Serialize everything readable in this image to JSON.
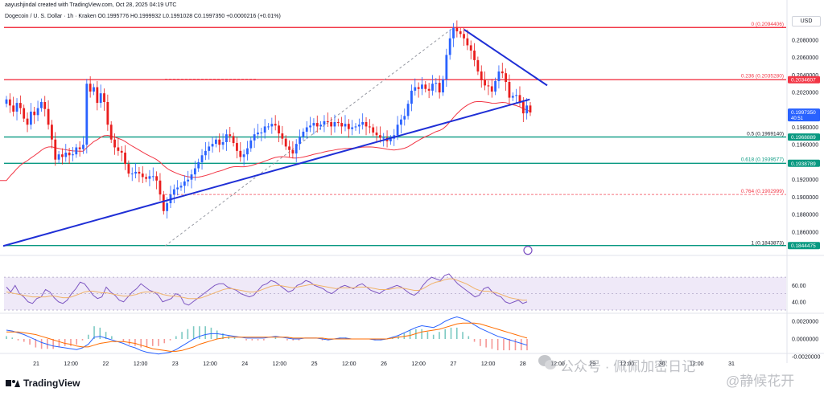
{
  "header": {
    "line1": "aayushjindal created with TradingView.com, Oct 28, 2025 04:19 UTC",
    "line2": "Dogecoin / U. S. Dollar · 1h · Kraken  O0.1995776  H0.1999932  L0.1991028  C0.1997350  +0.0000216 (+0.01%)"
  },
  "currency_label": "USD",
  "brand": "TradingView",
  "watermark": {
    "line1": "公众号 · 佩佩加密日记",
    "line2": "@静候花开"
  },
  "colors": {
    "up": "#2962ff",
    "down": "#e91e1e",
    "fib_red": "#f23645",
    "fib_green": "#089981",
    "ma": "#f23645",
    "trend": "#1f2fd6",
    "rsi": "#7e57c2",
    "rsi_ma": "#f0b36a",
    "macd": "#2962ff",
    "signal": "#ff6d00"
  },
  "chart_data": [
    {
      "type": "candlestick",
      "title": "Dogecoin / U. S. Dollar · 1h · Kraken",
      "y_range": [
        0.1835,
        0.2102
      ],
      "y_ticks": [
        "0.2080000",
        "0.2060000",
        "0.2040000",
        "0.2020000",
        "0.1980000",
        "0.1960000",
        "0.1920000",
        "0.1900000",
        "0.1880000",
        "0.1860000"
      ],
      "x_ticks": [
        "21",
        "12:00",
        "22",
        "12:00",
        "23",
        "12:00",
        "24",
        "12:00",
        "25",
        "12:00",
        "26",
        "12:00",
        "27",
        "12:00",
        "28",
        "12:00",
        "29",
        "12:00",
        "30",
        "12:00",
        "31"
      ],
      "price_labels": [
        {
          "value": "0.2034607",
          "kind": "red"
        },
        {
          "value": "0.1997350",
          "kind": "current",
          "sub": "40:51"
        },
        {
          "value": "0.1968889",
          "kind": "green"
        },
        {
          "value": "0.1938789",
          "kind": "green"
        },
        {
          "value": "0.1844475",
          "kind": "green"
        }
      ],
      "fib_levels": [
        {
          "label": "0 (0.2094406)",
          "value": 0.2094406,
          "color": "red"
        },
        {
          "label": "0.236 (0.2035280)",
          "value": 0.203528,
          "color": "red"
        },
        {
          "label": "0.5 (0.1969140)",
          "value": 0.196914,
          "color": "none"
        },
        {
          "label": "0.618 (0.1939577)",
          "value": 0.1939577,
          "color": "none"
        },
        {
          "label": "0.764 (0.1902999)",
          "value": 0.1902999,
          "color": "red"
        },
        {
          "label": "1 (0.1843873)",
          "value": 0.1843873,
          "color": "none"
        }
      ],
      "horizontal_lines": [
        {
          "value": 0.2094406,
          "color": "red"
        },
        {
          "value": 0.2034607,
          "color": "red"
        },
        {
          "value": 0.1968889,
          "color": "green"
        },
        {
          "value": 0.1938789,
          "color": "green"
        },
        {
          "value": 0.1844475,
          "color": "green"
        }
      ],
      "candles_close": [
        0.2012,
        0.2005,
        0.1998,
        0.2008,
        0.2002,
        0.199,
        0.1983,
        0.1998,
        0.1994,
        0.2002,
        0.2009,
        0.2001,
        0.1983,
        0.1966,
        0.1943,
        0.1949,
        0.1946,
        0.1951,
        0.1948,
        0.1949,
        0.1957,
        0.1955,
        0.196,
        0.203,
        0.2021,
        0.2026,
        0.2008,
        0.2019,
        0.2009,
        0.1983,
        0.1966,
        0.1957,
        0.1953,
        0.1951,
        0.1938,
        0.1927,
        0.1927,
        0.1929,
        0.1927,
        0.1923,
        0.1921,
        0.1924,
        0.1924,
        0.1919,
        0.1903,
        0.1884,
        0.1893,
        0.1903,
        0.1909,
        0.1911,
        0.1913,
        0.1918,
        0.192,
        0.1926,
        0.1933,
        0.194,
        0.1948,
        0.1953,
        0.1958,
        0.1961,
        0.1966,
        0.196,
        0.1963,
        0.1972,
        0.197,
        0.1962,
        0.1953,
        0.1946,
        0.1949,
        0.1956,
        0.1965,
        0.1972,
        0.1974,
        0.1974,
        0.1981,
        0.1981,
        0.1984,
        0.1982,
        0.1973,
        0.1967,
        0.1958,
        0.1954,
        0.195,
        0.1961,
        0.1969,
        0.1975,
        0.198,
        0.1982,
        0.1985,
        0.1981,
        0.1983,
        0.1987,
        0.1986,
        0.1981,
        0.1986,
        0.1985,
        0.1981,
        0.1984,
        0.1978,
        0.198,
        0.1981,
        0.1983,
        0.1986,
        0.1981,
        0.198,
        0.1974,
        0.1971,
        0.1968,
        0.1968,
        0.1964,
        0.1967,
        0.1971,
        0.1983,
        0.1989,
        0.1993,
        0.2007,
        0.2022,
        0.2026,
        0.2024,
        0.2029,
        0.2024,
        0.2022,
        0.203,
        0.2031,
        0.202,
        0.2035,
        0.2063,
        0.2082,
        0.2094,
        0.209,
        0.2087,
        0.2082,
        0.2074,
        0.2068,
        0.2057,
        0.2044,
        0.2034,
        0.2028,
        0.2027,
        0.2021,
        0.2033,
        0.2044,
        0.2042,
        0.2032,
        0.2014,
        0.2016,
        0.2017,
        0.2009,
        0.1996,
        0.2005,
        0.1997
      ],
      "ma_start": 0.1919,
      "ma_end": 0.1998,
      "trendlines": [
        {
          "from": [
            0,
            0.1844
          ],
          "to": [
            148,
            0.2012
          ],
          "color": "trend"
        },
        {
          "from": [
            132,
            0.2092
          ],
          "to": [
            153,
            0.2028
          ],
          "color": "trend"
        }
      ]
    },
    {
      "type": "line",
      "title": "RSI",
      "y_ticks": [
        "60.00",
        "40.00"
      ],
      "series": [
        {
          "key": "rsi",
          "values": [
            58,
            52,
            60,
            50,
            46,
            40,
            38,
            44,
            46,
            55,
            52,
            45,
            40,
            38,
            42,
            50,
            56,
            64,
            62,
            55,
            48,
            44,
            46,
            58,
            52,
            48,
            42,
            40,
            46,
            52,
            56,
            62,
            58,
            54,
            52,
            48,
            40,
            42,
            44,
            50,
            48,
            38,
            36,
            40,
            44,
            48,
            52,
            56,
            60,
            62,
            62,
            58,
            56,
            54,
            50,
            48,
            46,
            48,
            54,
            60,
            62,
            66,
            64,
            60,
            56,
            52,
            54,
            60,
            62,
            66,
            64,
            60,
            58,
            56,
            52,
            50,
            54,
            58,
            60,
            58,
            56,
            60,
            62,
            58,
            54,
            52,
            50,
            54,
            56,
            58,
            60,
            58,
            54,
            50,
            48,
            52,
            60,
            66,
            70,
            68,
            66,
            72,
            74,
            68,
            62,
            58,
            54,
            50,
            46,
            48,
            56,
            58,
            52,
            48,
            46,
            40,
            38,
            40,
            42,
            38,
            40
          ]
        },
        {
          "key": "rsi_ma",
          "values": [
            52,
            51,
            50,
            49,
            48,
            47,
            46,
            46,
            46,
            46,
            47,
            47,
            46,
            45,
            45,
            46,
            48,
            50,
            52,
            53,
            53,
            52,
            51,
            51,
            50,
            49,
            48,
            47,
            47,
            48,
            49,
            51,
            52,
            52,
            52,
            51,
            49,
            48,
            47,
            47,
            46,
            45,
            44,
            44,
            44,
            45,
            47,
            49,
            51,
            53,
            55,
            56,
            56,
            55,
            54,
            53,
            52,
            52,
            53,
            55,
            57,
            59,
            60,
            60,
            59,
            58,
            57,
            58,
            59,
            60,
            61,
            61,
            60,
            59,
            58,
            57,
            56,
            57,
            57,
            57,
            57,
            58,
            58,
            58,
            57,
            56,
            55,
            55,
            55,
            56,
            57,
            57,
            56,
            55,
            54,
            54,
            56,
            59,
            62,
            64,
            65,
            67,
            68,
            68,
            66,
            64,
            62,
            59,
            56,
            54,
            53,
            53,
            52,
            51,
            49,
            47,
            45,
            44,
            43,
            42,
            42
          ]
        }
      ]
    },
    {
      "type": "line",
      "title": "MACD",
      "y_ticks": [
        "0.0020000",
        "0.0000000",
        "-0.0020000"
      ],
      "series": [
        {
          "key": "macd",
          "values": [
            0.001,
            0.0009,
            0.0007,
            0.0005,
            0.0002,
            -0.0001,
            -0.0004,
            -0.0006,
            -0.0008,
            -0.0009,
            -0.001,
            -0.0011,
            -0.0012,
            -0.001,
            -0.0006,
            0.0002,
            0.0003,
            0.0001,
            -0.0001,
            -0.0003,
            -0.0005,
            -0.0008,
            -0.001,
            -0.0013,
            -0.0015,
            -0.0016,
            -0.0017,
            -0.0016,
            -0.0015,
            -0.0012,
            -0.0008,
            -0.0004,
            0.0,
            0.0003,
            0.0005,
            0.0006,
            0.0006,
            0.0005,
            0.0004,
            0.0003,
            0.0002,
            0.0001,
            0.0001,
            0.0001,
            0.0001,
            0.0002,
            0.0003,
            0.0002,
            0.0001,
            0.0,
            0.0,
            0.0001,
            0.0001,
            0.0001,
            0.0,
            -0.0001,
            0.0,
            0.0001,
            0.0001,
            0.0,
            0.0,
            0.0,
            0.0,
            -0.0001,
            -0.0001,
            0.0,
            0.0002,
            0.0004,
            0.0007,
            0.001,
            0.0013,
            0.0015,
            0.0014,
            0.0013,
            0.0016,
            0.002,
            0.0023,
            0.0025,
            0.0023,
            0.002,
            0.0016,
            0.0012,
            0.0009,
            0.0006,
            0.0003,
            0.0001,
            -0.0001,
            -0.0003,
            -0.0005,
            -0.0007
          ]
        },
        {
          "key": "signal",
          "values": [
            0.0008,
            0.0008,
            0.0008,
            0.0007,
            0.0006,
            0.0005,
            0.0003,
            0.0001,
            -0.0001,
            -0.0003,
            -0.0005,
            -0.0006,
            -0.0008,
            -0.0009,
            -0.0009,
            -0.0007,
            -0.0005,
            -0.0004,
            -0.0003,
            -0.0003,
            -0.0003,
            -0.0004,
            -0.0005,
            -0.0007,
            -0.0009,
            -0.0011,
            -0.0012,
            -0.0013,
            -0.0014,
            -0.0014,
            -0.0013,
            -0.0011,
            -0.0009,
            -0.0006,
            -0.0004,
            -0.0002,
            0.0,
            0.0001,
            0.0002,
            0.0002,
            0.0002,
            0.0002,
            0.0002,
            0.0002,
            0.0002,
            0.0002,
            0.0002,
            0.0002,
            0.0002,
            0.0001,
            0.0001,
            0.0001,
            0.0001,
            0.0001,
            0.0001,
            0.0,
            0.0,
            0.0,
            0.0,
            0.0,
            0.0,
            0.0,
            0.0,
            0.0,
            0.0,
            0.0,
            0.0001,
            0.0002,
            0.0003,
            0.0004,
            0.0006,
            0.0008,
            0.0009,
            0.001,
            0.0011,
            0.0013,
            0.0015,
            0.0017,
            0.0018,
            0.0018,
            0.0018,
            0.0017,
            0.0015,
            0.0013,
            0.0011,
            0.0009,
            0.0007,
            0.0005,
            0.0003,
            0.0001
          ]
        }
      ]
    }
  ]
}
